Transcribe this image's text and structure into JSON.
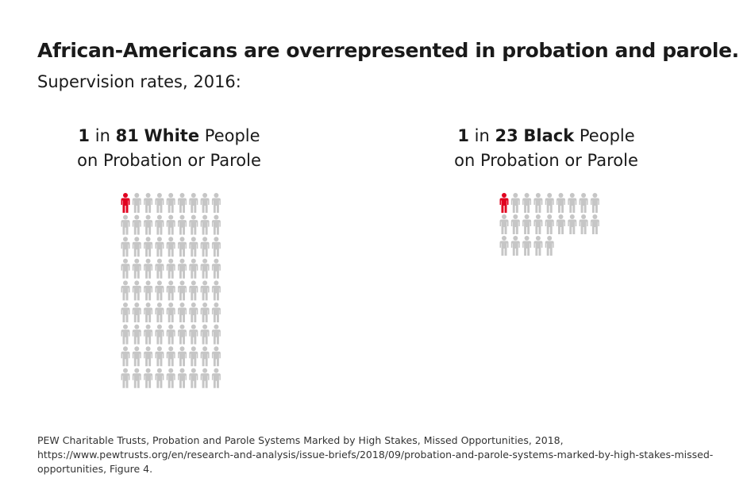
{
  "title": "African-Americans are overrepresented in probation and parole.",
  "subtitle": "Supervision rates, 2016:",
  "colors": {
    "highlight": "#e1001f",
    "base": "#c6c6c6"
  },
  "icon": "person-icon",
  "chart_data": [
    {
      "type": "icon-array",
      "label": {
        "one": "1",
        "in": "in",
        "count": "81",
        "group": "White",
        "people": "People",
        "line2": "on Probation or Parole"
      },
      "total": 81,
      "highlighted": 1,
      "columns": 9
    },
    {
      "type": "icon-array",
      "label": {
        "one": "1",
        "in": "in",
        "count": "23",
        "group": "Black",
        "people": "People",
        "line2": "on Probation or Parole"
      },
      "total": 23,
      "highlighted": 1,
      "columns": 9
    }
  ],
  "source": "PEW Charitable Trusts, Probation and Parole Systems Marked by High Stakes, Missed Opportunities, 2018, https://www.pewtrusts.org/en/research-and-analysis/issue-briefs/2018/09/probation-and-parole-systems-marked-by-high-stakes-missed-opportunities, Figure 4."
}
